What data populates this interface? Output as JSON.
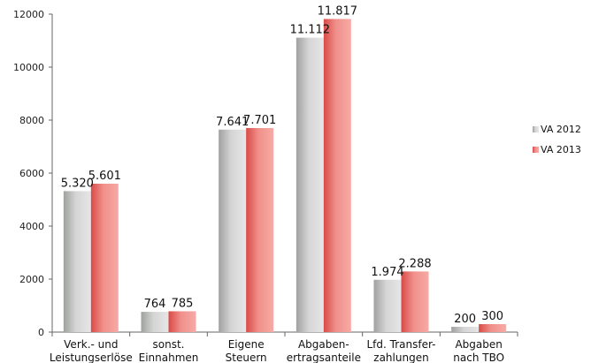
{
  "chart_data": {
    "type": "bar",
    "categories": [
      [
        "Verk.- und",
        "Leistungserlöse"
      ],
      [
        "sonst.",
        "Einnahmen"
      ],
      [
        "Eigene",
        "Steuern"
      ],
      [
        "Abgaben-",
        "ertragsanteile"
      ],
      [
        "Lfd. Transfer-",
        "zahlungen"
      ],
      [
        "Abgaben",
        "nach TBO"
      ]
    ],
    "series": [
      {
        "name": "VA 2012",
        "values": [
          5320,
          764,
          7641,
          11112,
          1974,
          200
        ],
        "labels": [
          "5.320",
          "764",
          "7.641",
          "11.112",
          "1.974",
          "200"
        ],
        "color": "#b5b7b6"
      },
      {
        "name": "VA 2013",
        "values": [
          5601,
          785,
          7701,
          11817,
          2288,
          300
        ],
        "labels": [
          "5.601",
          "785",
          "7.701",
          "11.817",
          "2.288",
          "300"
        ],
        "color": "#e8625f"
      }
    ],
    "yticks": [
      0,
      2000,
      4000,
      6000,
      8000,
      10000,
      12000
    ],
    "ylim": [
      0,
      12000
    ],
    "legend_position": "right"
  }
}
